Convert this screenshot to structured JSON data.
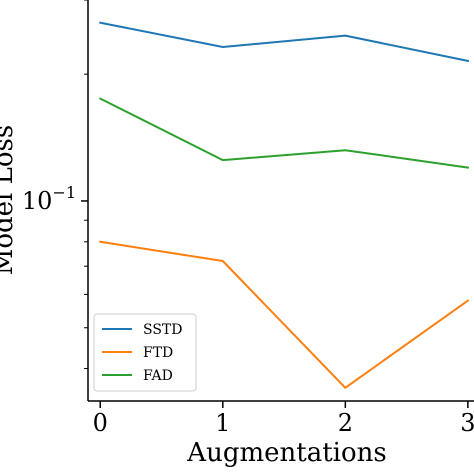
{
  "chart_data": {
    "type": "line",
    "title": "",
    "xlabel": "Augmentations",
    "ylabel": "Model Loss",
    "yscale": "log",
    "x": [
      0,
      1,
      2,
      3
    ],
    "x_ticks": [
      "0",
      "1",
      "2",
      "3"
    ],
    "xlim": [
      -0.1,
      3.05
    ],
    "ylim": [
      0.0335,
      0.3
    ],
    "y_major_ticks": [
      {
        "value": 0.1,
        "base": "10",
        "exp": "−1"
      }
    ],
    "y_minor_ticks": [
      0.04,
      0.05,
      0.06,
      0.07,
      0.08,
      0.09,
      0.2,
      0.3
    ],
    "grid": false,
    "legend_position": "lower-left",
    "series": [
      {
        "name": "SSTD",
        "color": "#1f77b4",
        "values": [
          0.265,
          0.232,
          0.247,
          0.215
        ]
      },
      {
        "name": "FTD",
        "color": "#ff7f0e",
        "values": [
          0.08,
          0.072,
          0.036,
          0.058
        ]
      },
      {
        "name": "FAD",
        "color": "#2ca02c",
        "values": [
          0.175,
          0.125,
          0.132,
          0.12
        ]
      }
    ]
  }
}
